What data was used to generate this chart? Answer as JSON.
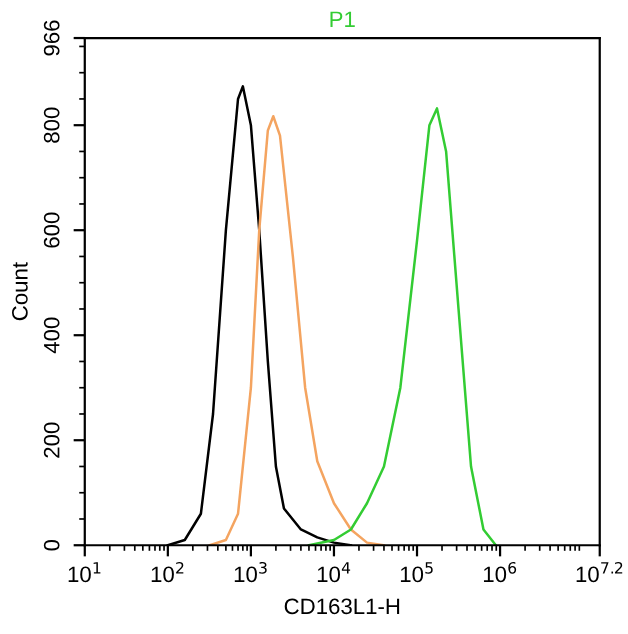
{
  "chart_data": {
    "type": "line",
    "xlabel": "CD163L1-H",
    "ylabel": "Count",
    "log": "x",
    "xlim": [
      10,
      15848932
    ],
    "ylim": [
      0,
      966
    ],
    "xticks": [
      {
        "value": 10,
        "label": "10$^{1}$"
      },
      {
        "value": 100,
        "label": "10$^{2}$"
      },
      {
        "value": 1000,
        "label": "10$^{3}$"
      },
      {
        "value": 10000,
        "label": "10$^{4}$"
      },
      {
        "value": 100000,
        "label": "10$^{5}$"
      },
      {
        "value": 1000000,
        "label": "10$^{6}$"
      },
      {
        "value": 15848932,
        "label": "10$^{7.2}$"
      }
    ],
    "yticks": [
      0,
      200,
      400,
      600,
      800,
      966
    ],
    "grid": false,
    "legend": false,
    "marker": "none",
    "line_style": "solid",
    "series": [
      {
        "color": "#000000",
        "x": [
          100,
          160,
          250,
          350,
          500,
          700,
          800,
          1000,
          1260,
          1600,
          2000,
          2500,
          4000,
          6300,
          10000,
          16000
        ],
        "values": [
          0,
          10,
          60,
          250,
          600,
          850,
          874,
          800,
          600,
          350,
          150,
          70,
          30,
          15,
          5,
          0
        ]
      },
      {
        "color": "#f4a460",
        "x": [
          320,
          500,
          700,
          1000,
          1260,
          1600,
          1860,
          2240,
          3200,
          4500,
          6300,
          10000,
          16000,
          25000,
          40000
        ],
        "values": [
          0,
          10,
          60,
          300,
          600,
          790,
          817,
          780,
          550,
          300,
          160,
          80,
          30,
          5,
          0
        ]
      },
      {
        "name": "P1",
        "color": "#33cc33",
        "x": [
          5000,
          10000,
          16000,
          25000,
          40000,
          63000,
          100000,
          141000,
          174000,
          224000,
          316000,
          447000,
          631000,
          890000
        ],
        "values": [
          0,
          10,
          30,
          80,
          150,
          300,
          580,
          800,
          832,
          750,
          450,
          150,
          30,
          0
        ]
      }
    ]
  }
}
